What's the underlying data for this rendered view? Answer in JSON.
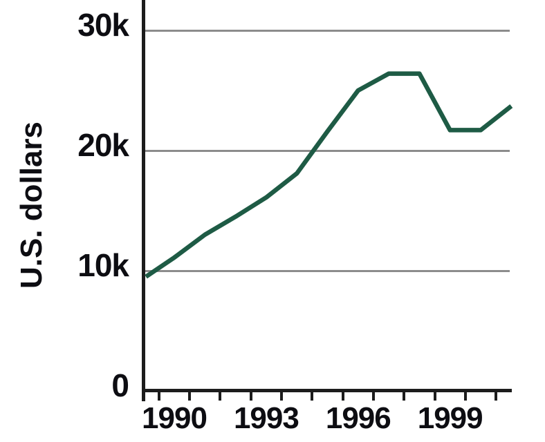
{
  "chart_data": {
    "type": "line",
    "title": "",
    "xlabel": "",
    "ylabel": "U.S. dollars",
    "x": [
      1989,
      1990,
      1991,
      1992,
      1993,
      1994,
      1995,
      1996,
      1997,
      1998,
      1999,
      2000,
      2001
    ],
    "series": [
      {
        "name": "U.S. dollars",
        "values": [
          9500,
          11100,
          13000,
          14500,
          16100,
          18100,
          21600,
          25000,
          26400,
          26400,
          21700,
          21700,
          23700
        ]
      }
    ],
    "xticks": [
      1990,
      1993,
      1996,
      1999
    ],
    "xtick_labels": [
      "1990",
      "1993",
      "1996",
      "1999"
    ],
    "yticks": [
      30000,
      20000,
      10000,
      0
    ],
    "ytick_labels": [
      "30k",
      "20k",
      "10k",
      "0"
    ],
    "minor_xtick_boundaries": [
      1989.5,
      1990.5,
      1991.5,
      1992.5,
      1993.5,
      1994.5,
      1995.5,
      1996.5,
      1997.5,
      1998.5,
      1999.5,
      2000.5
    ],
    "xlim": [
      1989,
      2001.1
    ],
    "ylim": [
      0,
      32500
    ],
    "grid": "horizontal-only",
    "legend": "none",
    "colors": {
      "line": "#1e5b45",
      "grid": "#8c8c8c",
      "axis": "#1c1c1c",
      "text": "#0d0d12",
      "background": "#ffffff"
    }
  }
}
